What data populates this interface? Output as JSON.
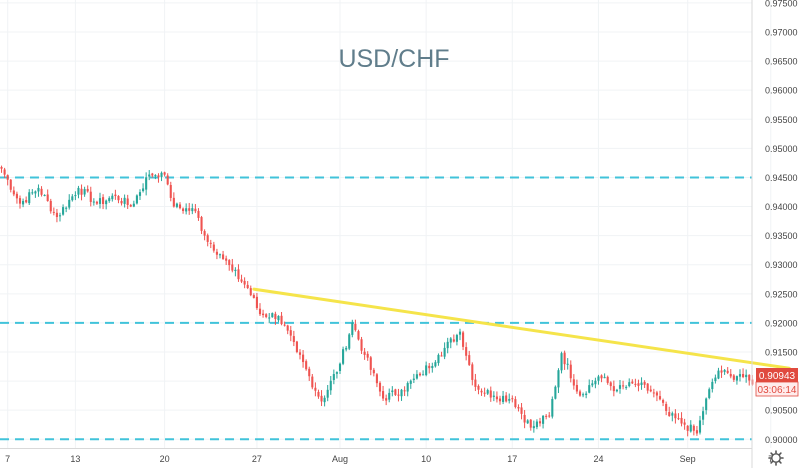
{
  "chart_data": {
    "type": "candlestick",
    "title": "USD/CHF",
    "ylim": [
      0.8985,
      0.9755
    ],
    "y_ticks": [
      "0.97500",
      "0.97000",
      "0.96500",
      "0.96000",
      "0.95500",
      "0.95000",
      "0.94500",
      "0.94000",
      "0.93500",
      "0.93000",
      "0.92500",
      "0.92000",
      "0.91500",
      "0.91000",
      "0.90500",
      "0.90000"
    ],
    "x_ticks": [
      {
        "label": "7",
        "bar": 2
      },
      {
        "label": "13",
        "bar": 24
      },
      {
        "label": "20",
        "bar": 53
      },
      {
        "label": "27",
        "bar": 83
      },
      {
        "label": "Aug",
        "bar": 110
      },
      {
        "label": "10",
        "bar": 138
      },
      {
        "label": "17",
        "bar": 166
      },
      {
        "label": "24",
        "bar": 194
      },
      {
        "label": "Sep",
        "bar": 223
      },
      {
        "label": "7",
        "bar": 250
      }
    ],
    "bars_total": 260,
    "anchors": [
      [
        0,
        0.9465
      ],
      [
        6,
        0.9405
      ],
      [
        12,
        0.9432
      ],
      [
        18,
        0.9382
      ],
      [
        25,
        0.9432
      ],
      [
        31,
        0.9405
      ],
      [
        37,
        0.9418
      ],
      [
        42,
        0.94
      ],
      [
        48,
        0.9455
      ],
      [
        52,
        0.9458
      ],
      [
        54,
        0.9438
      ],
      [
        56,
        0.94
      ],
      [
        63,
        0.9392
      ],
      [
        66,
        0.935
      ],
      [
        71,
        0.9318
      ],
      [
        75,
        0.929
      ],
      [
        80,
        0.926
      ],
      [
        84,
        0.9215
      ],
      [
        90,
        0.9212
      ],
      [
        96,
        0.915
      ],
      [
        104,
        0.9065
      ],
      [
        110,
        0.913
      ],
      [
        114,
        0.92
      ],
      [
        118,
        0.9145
      ],
      [
        124,
        0.907
      ],
      [
        130,
        0.9085
      ],
      [
        136,
        0.911
      ],
      [
        142,
        0.9145
      ],
      [
        149,
        0.9185
      ],
      [
        154,
        0.909
      ],
      [
        160,
        0.9075
      ],
      [
        166,
        0.907
      ],
      [
        172,
        0.902
      ],
      [
        178,
        0.904
      ],
      [
        182,
        0.9148
      ],
      [
        188,
        0.9075
      ],
      [
        194,
        0.9108
      ],
      [
        200,
        0.9085
      ],
      [
        206,
        0.9095
      ],
      [
        212,
        0.908
      ],
      [
        217,
        0.904
      ],
      [
        222,
        0.9025
      ],
      [
        226,
        0.901
      ],
      [
        229,
        0.907
      ],
      [
        233,
        0.9118
      ],
      [
        237,
        0.9108
      ],
      [
        240,
        0.9112
      ],
      [
        244,
        0.9094
      ]
    ],
    "last_price": "0.90943",
    "countdown": "03:06:14",
    "horizontal_levels": [
      0.945,
      0.92,
      0.9
    ],
    "trendline": {
      "start": [
        82,
        0.9258
      ],
      "end": [
        256,
        0.9122
      ]
    },
    "colors": {
      "up": "#26a69a",
      "down": "#ef5350",
      "level": "#41c3da",
      "trendline": "#f5e44a",
      "title": "#607d8b",
      "price_label": "#e04a3f"
    }
  },
  "ui": {
    "settings_icon": "gear-icon"
  }
}
